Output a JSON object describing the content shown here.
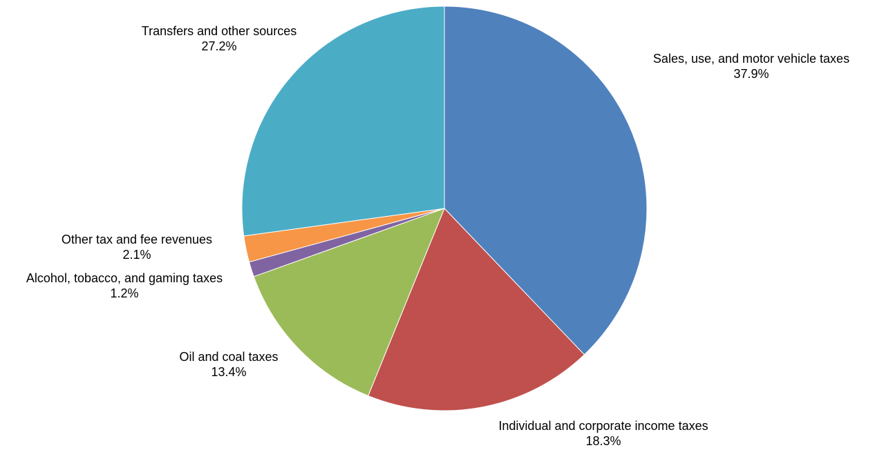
{
  "chart_data": {
    "type": "pie",
    "start": "top",
    "direction": "clockwise",
    "slices": [
      {
        "label": "Sales, use, and motor vehicle taxes",
        "value": 37.9,
        "value_label": "37.9%",
        "color": "#4F81BD"
      },
      {
        "label": "Individual and corporate income taxes",
        "value": 18.3,
        "value_label": "18.3%",
        "color": "#C0504D"
      },
      {
        "label": "Oil and coal taxes",
        "value": 13.4,
        "value_label": "13.4%",
        "color": "#9BBB59"
      },
      {
        "label": "Alcohol, tobacco, and gaming taxes",
        "value": 1.2,
        "value_label": "1.2%",
        "color": "#8064A2"
      },
      {
        "label": "Other tax and fee revenues",
        "value": 2.1,
        "value_label": "2.1%",
        "color": "#F79646"
      },
      {
        "label": "Transfers and other sources",
        "value": 27.2,
        "value_label": "27.2%",
        "color": "#4BACC6"
      }
    ]
  }
}
